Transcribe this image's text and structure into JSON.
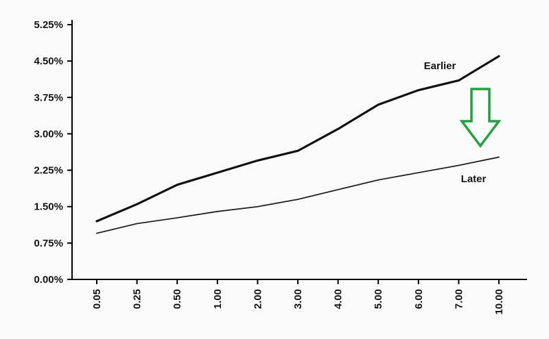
{
  "chart_data": {
    "type": "line",
    "title": "",
    "xlabel": "",
    "ylabel": "",
    "grid": false,
    "legend": "inline-labels",
    "ylim": [
      0,
      5.25
    ],
    "y_tick_step": 0.75,
    "y_tick_labels": [
      "0.00%",
      "0.75%",
      "1.50%",
      "2.25%",
      "3.00%",
      "3.75%",
      "4.50%",
      "5.25%"
    ],
    "x_tick_labels": [
      "0.05",
      "0.25",
      "0.50",
      "1.00",
      "2.00",
      "3.00",
      "4.00",
      "5.00",
      "6.00",
      "7.00",
      "10.00"
    ],
    "series": [
      {
        "name": "Earlier",
        "values": [
          1.2,
          1.55,
          1.95,
          2.2,
          2.45,
          2.65,
          3.1,
          3.6,
          3.9,
          4.1,
          4.6
        ],
        "color": "#111111",
        "stroke_width": 3.2
      },
      {
        "name": "Later",
        "values": [
          0.95,
          1.15,
          1.27,
          1.4,
          1.5,
          1.65,
          1.85,
          2.05,
          2.2,
          2.35,
          2.52
        ],
        "color": "#222222",
        "stroke_width": 1.8
      }
    ],
    "annotations": [
      {
        "type": "down-arrow",
        "color": "#1ca53a",
        "fill": "#ffffff",
        "between_series": [
          "Earlier",
          "Later"
        ],
        "x_position": "between 7.00 and 10.00"
      }
    ]
  }
}
